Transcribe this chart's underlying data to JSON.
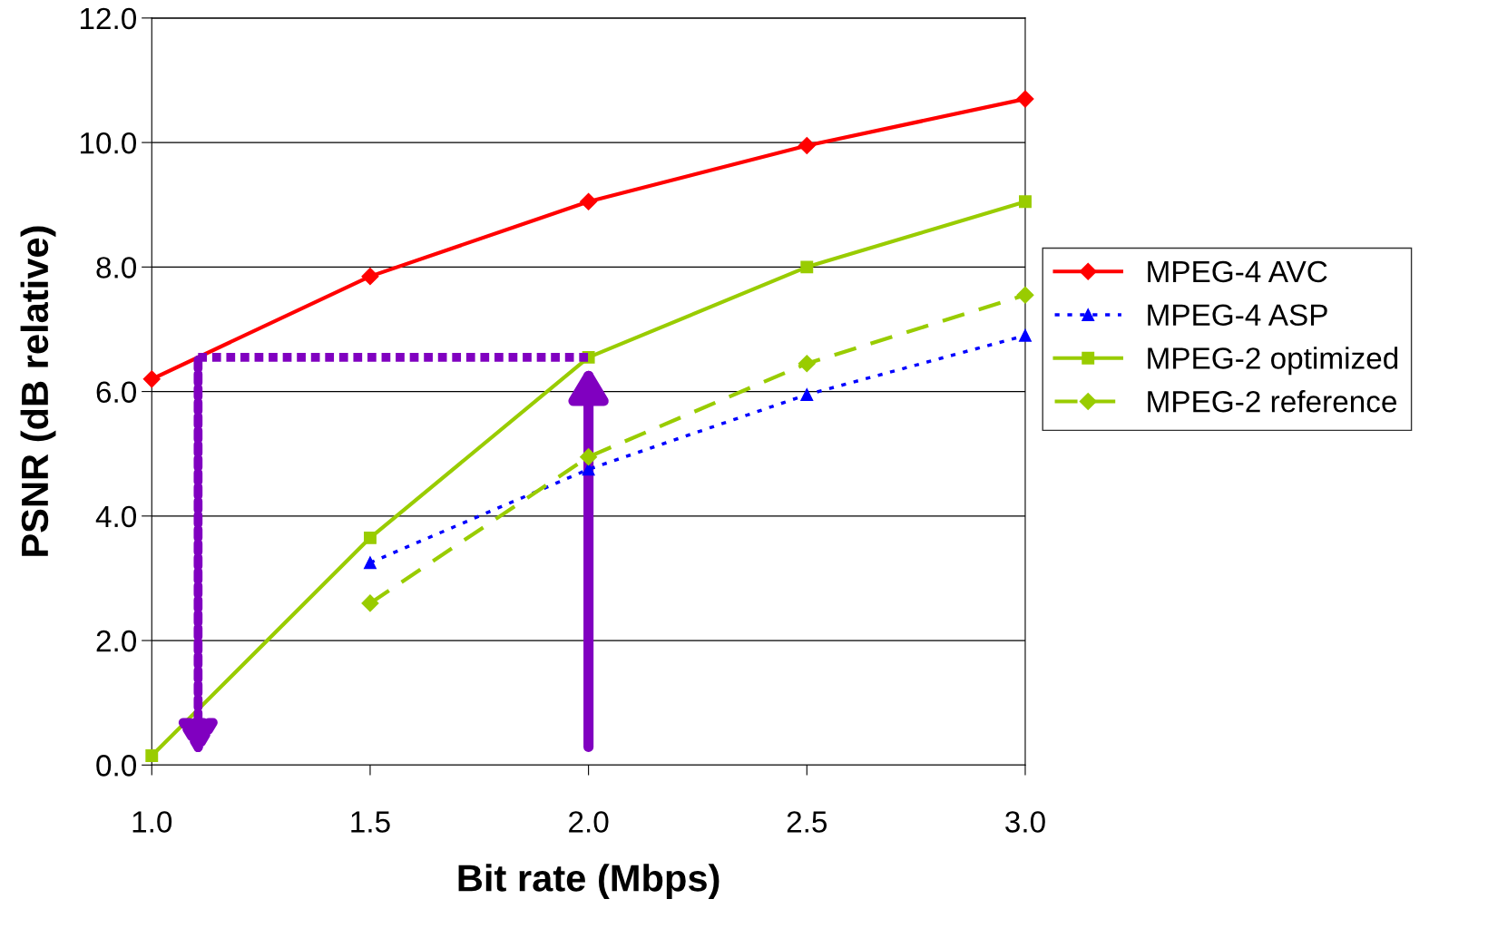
{
  "chart_data": {
    "type": "line",
    "xlabel": "Bit rate (Mbps)",
    "ylabel": "PSNR (dB relative)",
    "x": [
      1.0,
      1.5,
      2.0,
      2.5,
      3.0
    ],
    "series": [
      {
        "name": "MPEG-4 AVC",
        "color": "#ff0000",
        "marker": "diamond",
        "line_style": "solid",
        "values": [
          6.2,
          7.85,
          9.05,
          9.95,
          10.7
        ]
      },
      {
        "name": "MPEG-4 ASP",
        "color": "#0000ff",
        "marker": "triangle",
        "line_style": "dotted",
        "values": [
          null,
          3.25,
          4.75,
          5.95,
          6.9
        ]
      },
      {
        "name": "MPEG-2 optimized",
        "color": "#99cc00",
        "marker": "square",
        "line_style": "solid",
        "values": [
          0.15,
          3.65,
          6.55,
          8.0,
          9.05
        ]
      },
      {
        "name": "MPEG-2 reference",
        "color": "#99cc00",
        "marker": "diamond",
        "line_style": "dashed",
        "values": [
          null,
          2.6,
          4.95,
          6.45,
          7.55
        ]
      }
    ],
    "xlim": [
      1.0,
      3.0
    ],
    "ylim": [
      0,
      12
    ],
    "xticks": [
      {
        "value": 1.0,
        "label": "1.0"
      },
      {
        "value": 1.5,
        "label": "1.5"
      },
      {
        "value": 2.0,
        "label": "2.0"
      },
      {
        "value": 2.5,
        "label": "2.5"
      },
      {
        "value": 3.0,
        "label": "3.0"
      }
    ],
    "yticks": [
      {
        "value": 0,
        "label": "0.0"
      },
      {
        "value": 2,
        "label": "2.0"
      },
      {
        "value": 4,
        "label": "4.0"
      },
      {
        "value": 6,
        "label": "6.0"
      },
      {
        "value": 8,
        "label": "8.0"
      },
      {
        "value": 10,
        "label": "10.0"
      },
      {
        "value": 12,
        "label": "12.0"
      }
    ],
    "ref_lines": [
      {
        "axis": "y",
        "value": 6.55,
        "color": "#8000c0",
        "line_style": "dotted"
      }
    ],
    "grid": "y",
    "legend": "right"
  }
}
